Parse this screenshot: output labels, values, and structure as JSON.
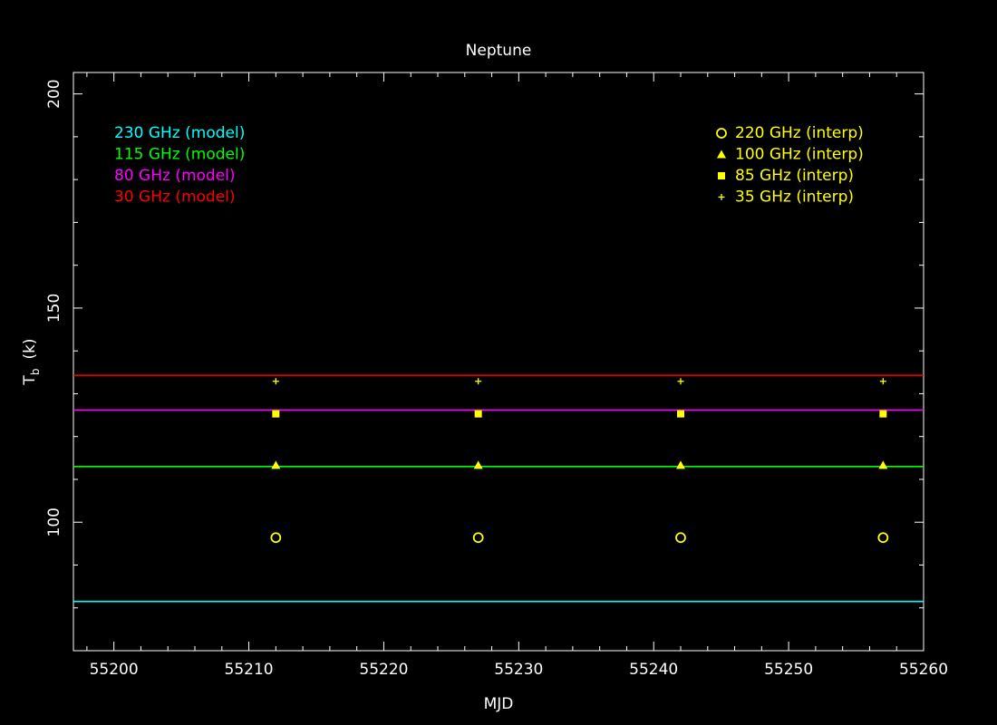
{
  "chart_data": {
    "type": "scatter",
    "title": "Neptune",
    "xlabel": "MJD",
    "ylabel_main": "T",
    "ylabel_sub": "b",
    "ylabel_unit": "(k)",
    "xlim": [
      55197,
      55260
    ],
    "ylim": [
      70,
      205
    ],
    "x_ticks": [
      55200,
      55210,
      55220,
      55230,
      55240,
      55250,
      55260
    ],
    "y_ticks": [
      100,
      150,
      200
    ],
    "x_minor_step": 2,
    "y_minor_step": 10,
    "model_lines": [
      {
        "name": "230 GHz (model)",
        "color": "#00ffff",
        "y": 81.5
      },
      {
        "name": "115 GHz (model)",
        "color": "#00ff00",
        "y": 113
      },
      {
        "name": "80 GHz (model)",
        "color": "#ff00ff",
        "y": 126.2
      },
      {
        "name": "30 GHz (model)",
        "color": "#ff0000",
        "y": 134.3
      }
    ],
    "series": [
      {
        "name": "220 GHz (interp)",
        "marker": "circle",
        "color": "#ffff00",
        "x": [
          55212,
          55227,
          55242,
          55257
        ],
        "y": [
          96.4,
          96.4,
          96.4,
          96.4
        ]
      },
      {
        "name": "100 GHz (interp)",
        "marker": "triangle",
        "color": "#ffff00",
        "x": [
          55212,
          55227,
          55242,
          55257
        ],
        "y": [
          113.3,
          113.3,
          113.3,
          113.3
        ]
      },
      {
        "name": "85 GHz (interp)",
        "marker": "square",
        "color": "#ffff00",
        "x": [
          55212,
          55227,
          55242,
          55257
        ],
        "y": [
          125.3,
          125.3,
          125.3,
          125.3
        ]
      },
      {
        "name": "35 GHz (interp)",
        "marker": "plus",
        "color": "#ffff00",
        "x": [
          55212,
          55227,
          55242,
          55257
        ],
        "y": [
          132.9,
          132.9,
          132.9,
          132.9
        ]
      }
    ],
    "grid": false,
    "legend_models_position": "top-left",
    "legend_interp_position": "top-right"
  }
}
